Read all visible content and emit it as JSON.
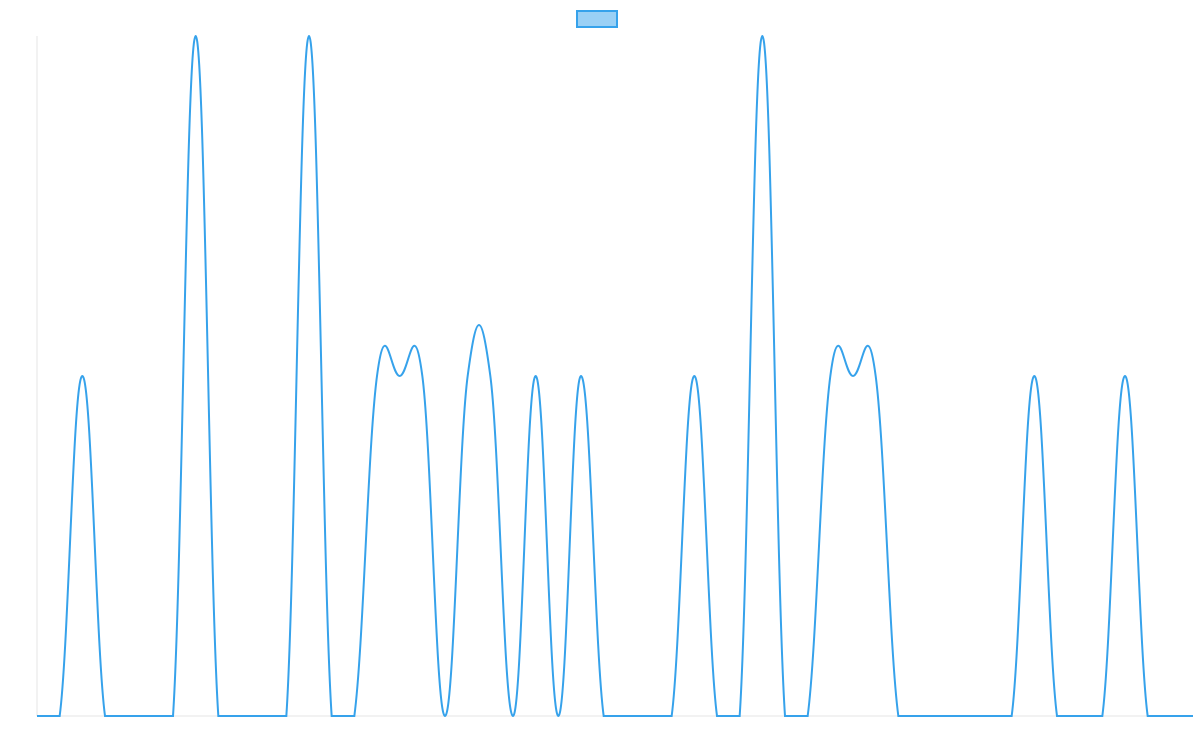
{
  "chart_data": {
    "type": "line",
    "title": "",
    "xlabel": "",
    "ylabel": "",
    "grid": false,
    "legend": "top-center",
    "ylim": [
      0,
      2
    ],
    "x": [
      0,
      1,
      2,
      3,
      4,
      5,
      6,
      7,
      8,
      9,
      10,
      11,
      12,
      13,
      14,
      15,
      16,
      17,
      18,
      19,
      20,
      21,
      22,
      23,
      24,
      25,
      26,
      27,
      28,
      29,
      30,
      31,
      32,
      33,
      34,
      35,
      36,
      37,
      38,
      39,
      40,
      41,
      42,
      43,
      44,
      45,
      46,
      47,
      48,
      49,
      50,
      51
    ],
    "series": [
      {
        "name": "",
        "color": "#36a2eb",
        "fill": "rgba(54,162,235,0.5)",
        "values": [
          0,
          0,
          1,
          0,
          0,
          0,
          0,
          2,
          0,
          0,
          0,
          0,
          2,
          0,
          0,
          1,
          1,
          1,
          0,
          1,
          1,
          0,
          1,
          0,
          1,
          0,
          0,
          0,
          0,
          1,
          0,
          0,
          2,
          0,
          0,
          1,
          1,
          1,
          0,
          0,
          0,
          0,
          0,
          0,
          1,
          0,
          0,
          0,
          1,
          0,
          0,
          0
        ]
      }
    ]
  }
}
